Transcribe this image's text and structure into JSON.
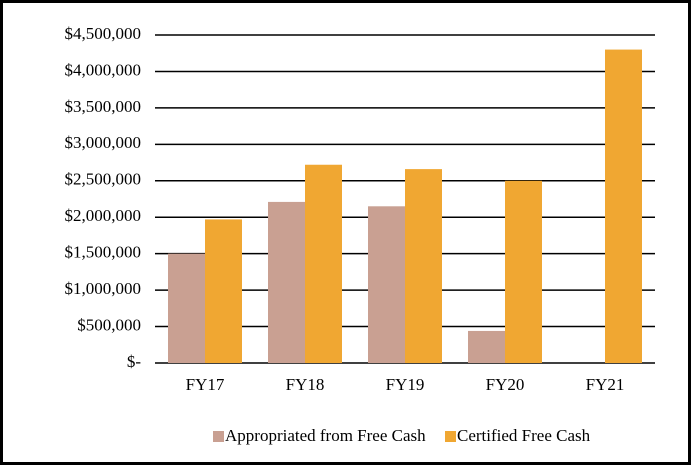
{
  "chart_data": {
    "type": "bar",
    "categories": [
      "FY17",
      "FY18",
      "FY19",
      "FY20",
      "FY21"
    ],
    "series": [
      {
        "name": "Appropriated from Free Cash",
        "color": "#c9a092",
        "values": [
          1500000,
          2210000,
          2150000,
          440000,
          0
        ]
      },
      {
        "name": "Certified Free Cash",
        "color": "#f0a732",
        "values": [
          1970000,
          2720000,
          2660000,
          2500000,
          4300000
        ]
      }
    ],
    "ylim": [
      0,
      4500000
    ],
    "yticks": [
      {
        "value": 0,
        "label": "$-"
      },
      {
        "value": 500000,
        "label": "$500,000"
      },
      {
        "value": 1000000,
        "label": "$1,000,000"
      },
      {
        "value": 1500000,
        "label": "$1,500,000"
      },
      {
        "value": 2000000,
        "label": "$2,000,000"
      },
      {
        "value": 2500000,
        "label": "$2,500,000"
      },
      {
        "value": 3000000,
        "label": "$3,000,000"
      },
      {
        "value": 3500000,
        "label": "$3,500,000"
      },
      {
        "value": 4000000,
        "label": "$4,000,000"
      },
      {
        "value": 4500000,
        "label": "$4,500,000"
      }
    ],
    "grid": true,
    "legend": "bottom"
  }
}
